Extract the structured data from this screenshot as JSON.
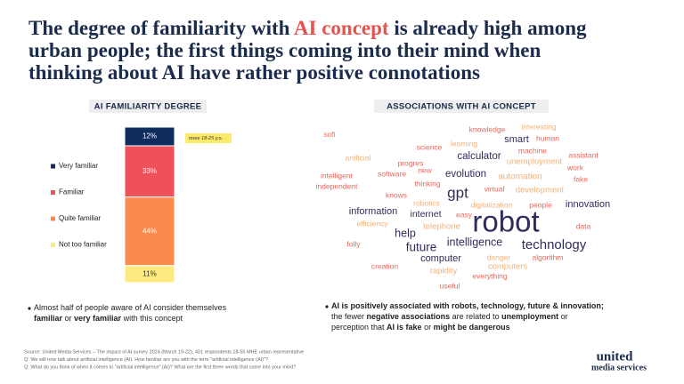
{
  "title": [
    {
      "text": "The degree of familiarity with ",
      "highlight": false
    },
    {
      "text": "AI concept",
      "highlight": true
    },
    {
      "text": " is already high among|urban people; the first things coming into their mind when|thinking about AI have rather positive connotations",
      "highlight": false
    }
  ],
  "chart_data": {
    "type": "stacked-bar",
    "title": "AI FAMILIARITY DEGREE",
    "series": [
      {
        "name": "Very familiar",
        "color": "#0e2d5e",
        "label_color": "#ffffff",
        "values": [
          12
        ],
        "value_labels": [
          "12%"
        ]
      },
      {
        "name": "Familiar",
        "color": "#ef515a",
        "label_color": "#ffffff",
        "values": [
          33
        ],
        "value_labels": [
          "33%"
        ]
      },
      {
        "name": "Quite familiar",
        "color": "#fa8b4d",
        "label_color": "#ffffff",
        "values": [
          44
        ],
        "value_labels": [
          "44%"
        ]
      },
      {
        "name": "Not too familiar",
        "color": "#fdeb7f",
        "label_color": "#333333",
        "values": [
          11
        ],
        "value_labels": [
          "11%"
        ]
      }
    ],
    "annotation": "more 18-25 y.o."
  },
  "word_cloud": {
    "title": "ASSOCIATIONS WITH AI CONCEPT",
    "words": [
      "soft",
      "knowledge",
      "interesting",
      "smart",
      "human",
      "artificial",
      "science",
      "learning",
      "machine",
      "assistant",
      "calculator",
      "unemployment",
      "progres",
      "intelligent",
      "new",
      "work",
      "software",
      "evolution",
      "automation",
      "fake",
      "independent",
      "thinking",
      "virtual",
      "development",
      "knows",
      "gpt",
      "robotics",
      "digitalization",
      "people",
      "innovation",
      "information",
      "internet",
      "easy",
      "efficiency",
      "robot",
      "telephone",
      "data",
      "help",
      "technology",
      "future",
      "intelligence",
      "folly",
      "computer",
      "danger",
      "algorithm",
      "creation",
      "computers",
      "rapidity",
      "everything",
      "useful"
    ]
  },
  "bullets": [
    [
      {
        "text": "Almost half of people aware of AI consider themselves",
        "bold": false
      },
      {
        "text": "|",
        "bold": false
      },
      {
        "text": "familiar",
        "bold": true
      },
      {
        "text": " or ",
        "bold": false
      },
      {
        "text": "very familiar",
        "bold": true
      },
      {
        "text": " with this concept",
        "bold": false
      }
    ],
    [
      {
        "text": "AI is positively associated with robots, technology, future & innovation;",
        "bold": true
      },
      {
        "text": "|",
        "bold": false
      },
      {
        "text": "the fewer ",
        "bold": false
      },
      {
        "text": "negative associations",
        "bold": true
      },
      {
        "text": " are related to ",
        "bold": false
      },
      {
        "text": "unemployment",
        "bold": true
      },
      {
        "text": " or",
        "bold": false
      },
      {
        "text": "|",
        "bold": false
      },
      {
        "text": "perception that ",
        "bold": false
      },
      {
        "text": "AI is fake",
        "bold": true
      },
      {
        "text": " or ",
        "bold": false
      },
      {
        "text": "might be dangerous",
        "bold": true
      }
    ]
  ],
  "sources": [
    "Source: United Media Services – The impact of AI survey 2024 (March 19-22), 401 respondents 18-55 MHE urban representative",
    "Q:  We will now talk about artificial intelligence (AI). How familiar are you with the term \"artificial intelligence (AI)\"?",
    "Q:  What do you think of when it comes to \"artificial intelligence\" (AI)? What are the first three words that come into your mind?"
  ],
  "logo": {
    "line1": "united",
    "line2": "media services"
  }
}
